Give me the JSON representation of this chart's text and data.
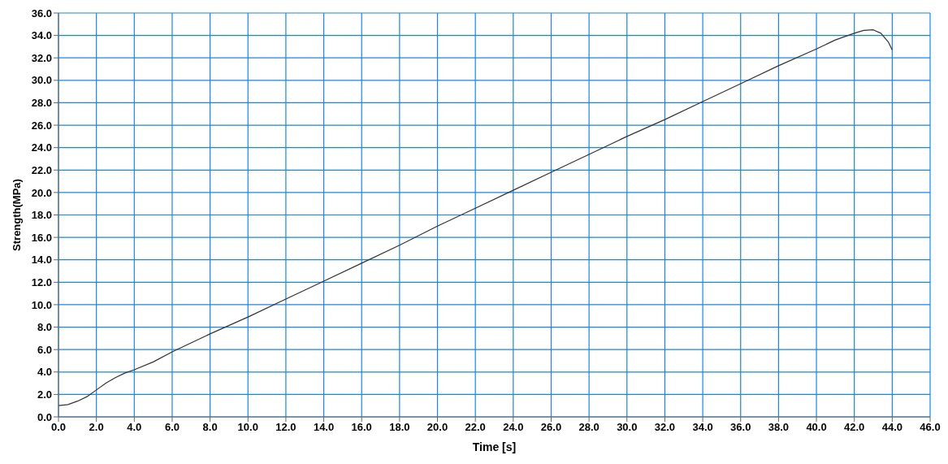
{
  "chart_data": {
    "type": "line",
    "xlabel": "Time [s]",
    "ylabel": "Strength(MPa)",
    "x": [
      0,
      0.5,
      1,
      1.5,
      2,
      2.5,
      3,
      3.5,
      4,
      5,
      6,
      8,
      10,
      12,
      14,
      16,
      18,
      20,
      22,
      24,
      26,
      28,
      30,
      32,
      34,
      36,
      38,
      40,
      41,
      42,
      42.5,
      43,
      43.4,
      43.8,
      44
    ],
    "series": [
      {
        "color": "#333333",
        "values": [
          1.0,
          1.1,
          1.4,
          1.8,
          2.4,
          3.0,
          3.5,
          3.9,
          4.2,
          4.9,
          5.8,
          7.4,
          8.9,
          10.5,
          12.1,
          13.7,
          15.3,
          17.0,
          18.6,
          20.2,
          21.8,
          23.4,
          25.0,
          26.5,
          28.1,
          29.7,
          31.3,
          32.8,
          33.6,
          34.2,
          34.45,
          34.5,
          34.2,
          33.4,
          32.7
        ]
      }
    ],
    "xlim": [
      0,
      46
    ],
    "xticks": [
      {
        "value": 0,
        "label": "0.0"
      },
      {
        "value": 2,
        "label": "2.0"
      },
      {
        "value": 4,
        "label": "4.0"
      },
      {
        "value": 6,
        "label": "6.0"
      },
      {
        "value": 8,
        "label": "8.0"
      },
      {
        "value": 10,
        "label": "10.0"
      },
      {
        "value": 12,
        "label": "12.0"
      },
      {
        "value": 14,
        "label": "14.0"
      },
      {
        "value": 16,
        "label": "16.0"
      },
      {
        "value": 18,
        "label": "18.0"
      },
      {
        "value": 20,
        "label": "20.0"
      },
      {
        "value": 22,
        "label": "22.0"
      },
      {
        "value": 24,
        "label": "24.0"
      },
      {
        "value": 26,
        "label": "26.0"
      },
      {
        "value": 28,
        "label": "28.0"
      },
      {
        "value": 30,
        "label": "30.0"
      },
      {
        "value": 32,
        "label": "32.0"
      },
      {
        "value": 34,
        "label": "34.0"
      },
      {
        "value": 36,
        "label": "36.0"
      },
      {
        "value": 38,
        "label": "38.0"
      },
      {
        "value": 40,
        "label": "40.0"
      },
      {
        "value": 42,
        "label": "42.0"
      },
      {
        "value": 44,
        "label": "44.0"
      },
      {
        "value": 46,
        "label": "46.0"
      }
    ],
    "ylim": [
      0,
      36
    ],
    "yticks": [
      {
        "value": 0,
        "label": "0.0"
      },
      {
        "value": 2,
        "label": "2.0"
      },
      {
        "value": 4,
        "label": "4.0"
      },
      {
        "value": 6,
        "label": "6.0"
      },
      {
        "value": 8,
        "label": "8.0"
      },
      {
        "value": 10,
        "label": "10.0"
      },
      {
        "value": 12,
        "label": "12.0"
      },
      {
        "value": 14,
        "label": "14.0"
      },
      {
        "value": 16,
        "label": "16.0"
      },
      {
        "value": 18,
        "label": "18.0"
      },
      {
        "value": 20,
        "label": "20.0"
      },
      {
        "value": 22,
        "label": "22.0"
      },
      {
        "value": 24,
        "label": "24.0"
      },
      {
        "value": 26,
        "label": "26.0"
      },
      {
        "value": 28,
        "label": "28.0"
      },
      {
        "value": 30,
        "label": "30.0"
      },
      {
        "value": 32,
        "label": "32.0"
      },
      {
        "value": 34,
        "label": "34.0"
      },
      {
        "value": 36,
        "label": "36.0"
      }
    ],
    "grid": true,
    "marker": "none",
    "line_style": "solid"
  }
}
